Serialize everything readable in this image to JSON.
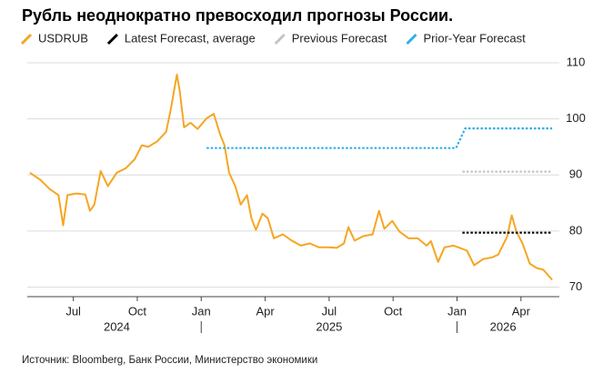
{
  "chart_data": {
    "type": "line",
    "title": "Рубль неоднократно превосходил прогнозы России.",
    "source": "Источник: Bloomberg, Банк России, Министерство экономики",
    "xlim": [
      2024.32,
      2026.4
    ],
    "ylim": [
      68.3,
      110
    ],
    "yticks": [
      70,
      80,
      90,
      100,
      110
    ],
    "xticks": [
      {
        "value": 2024.5,
        "label": "Jul"
      },
      {
        "value": 2024.75,
        "label": "Oct"
      },
      {
        "value": 2025.0,
        "label": "Jan"
      },
      {
        "value": 2025.25,
        "label": "Apr"
      },
      {
        "value": 2025.5,
        "label": "Jul"
      },
      {
        "value": 2025.75,
        "label": "Oct"
      },
      {
        "value": 2026.0,
        "label": "Jan"
      },
      {
        "value": 2026.25,
        "label": "Apr"
      }
    ],
    "year_labels": [
      {
        "value": 2024.67,
        "label": "2024"
      },
      {
        "value": 2025.5,
        "label": "2025"
      },
      {
        "value": 2026.18,
        "label": "2026"
      }
    ],
    "year_dividers": [
      2025.0,
      2026.0
    ],
    "grid": true,
    "series": [
      {
        "name": "USDRUB",
        "color": "#f5a623",
        "dotted": false,
        "x": [
          2024.33,
          2024.372,
          2024.407,
          2024.442,
          2024.46,
          2024.477,
          2024.512,
          2024.547,
          2024.565,
          2024.582,
          2024.607,
          2024.635,
          2024.67,
          2024.705,
          2024.74,
          2024.768,
          2024.793,
          2024.828,
          2024.863,
          2024.881,
          2024.905,
          2024.916,
          2024.933,
          2024.958,
          2024.986,
          2025.021,
          2025.049,
          2025.074,
          2025.091,
          2025.109,
          2025.133,
          2025.154,
          2025.179,
          2025.196,
          2025.214,
          2025.239,
          2025.26,
          2025.284,
          2025.319,
          2025.354,
          2025.389,
          2025.425,
          2025.46,
          2025.495,
          2025.53,
          2025.558,
          2025.575,
          2025.6,
          2025.635,
          2025.67,
          2025.695,
          2025.716,
          2025.747,
          2025.775,
          2025.811,
          2025.846,
          2025.881,
          2025.898,
          2025.926,
          2025.951,
          2025.986,
          2026.011,
          2026.039,
          2026.067,
          2026.102,
          2026.137,
          2026.161,
          2026.196,
          2026.214,
          2026.232,
          2026.256,
          2026.284,
          2026.312,
          2026.337,
          2026.372
        ],
        "values": [
          90.4,
          89.1,
          87.5,
          86.4,
          81,
          86.4,
          86.7,
          86.5,
          83.6,
          84.7,
          90.7,
          88,
          90.4,
          91.2,
          92.8,
          95.3,
          95,
          96,
          97.7,
          101.7,
          107.9,
          105,
          98.5,
          99.3,
          98.2,
          100.1,
          100.9,
          97.2,
          95.3,
          90.4,
          88,
          84.7,
          86.4,
          82.3,
          80.2,
          83.1,
          82.3,
          78.7,
          79.4,
          78.3,
          77.4,
          77.8,
          77.1,
          77.1,
          77,
          77.8,
          80.7,
          78.3,
          79.1,
          79.4,
          83.6,
          80.4,
          81.8,
          79.9,
          78.7,
          78.7,
          77.4,
          78.2,
          74.5,
          77.1,
          77.4,
          77,
          76.5,
          73.9,
          75,
          75.3,
          75.8,
          79,
          82.8,
          79.9,
          77.8,
          74.2,
          73.4,
          73.1,
          71.3
        ]
      },
      {
        "name": "Latest Forecast, average",
        "color": "#000000",
        "dotted": true,
        "x": [
          2026.021,
          2026.372
        ],
        "values": [
          79.7,
          79.7
        ]
      },
      {
        "name": "Previous Forecast",
        "color": "#c4c4c4",
        "dotted": true,
        "x": [
          2026.021,
          2026.372
        ],
        "values": [
          90.6,
          90.6
        ]
      },
      {
        "name": "Prior-Year Forecast",
        "color": "#33aee8",
        "dotted": true,
        "x": [
          2025.021,
          2025.996,
          2026.032,
          2026.372
        ],
        "values": [
          94.8,
          94.8,
          98.3,
          98.3
        ]
      }
    ]
  }
}
